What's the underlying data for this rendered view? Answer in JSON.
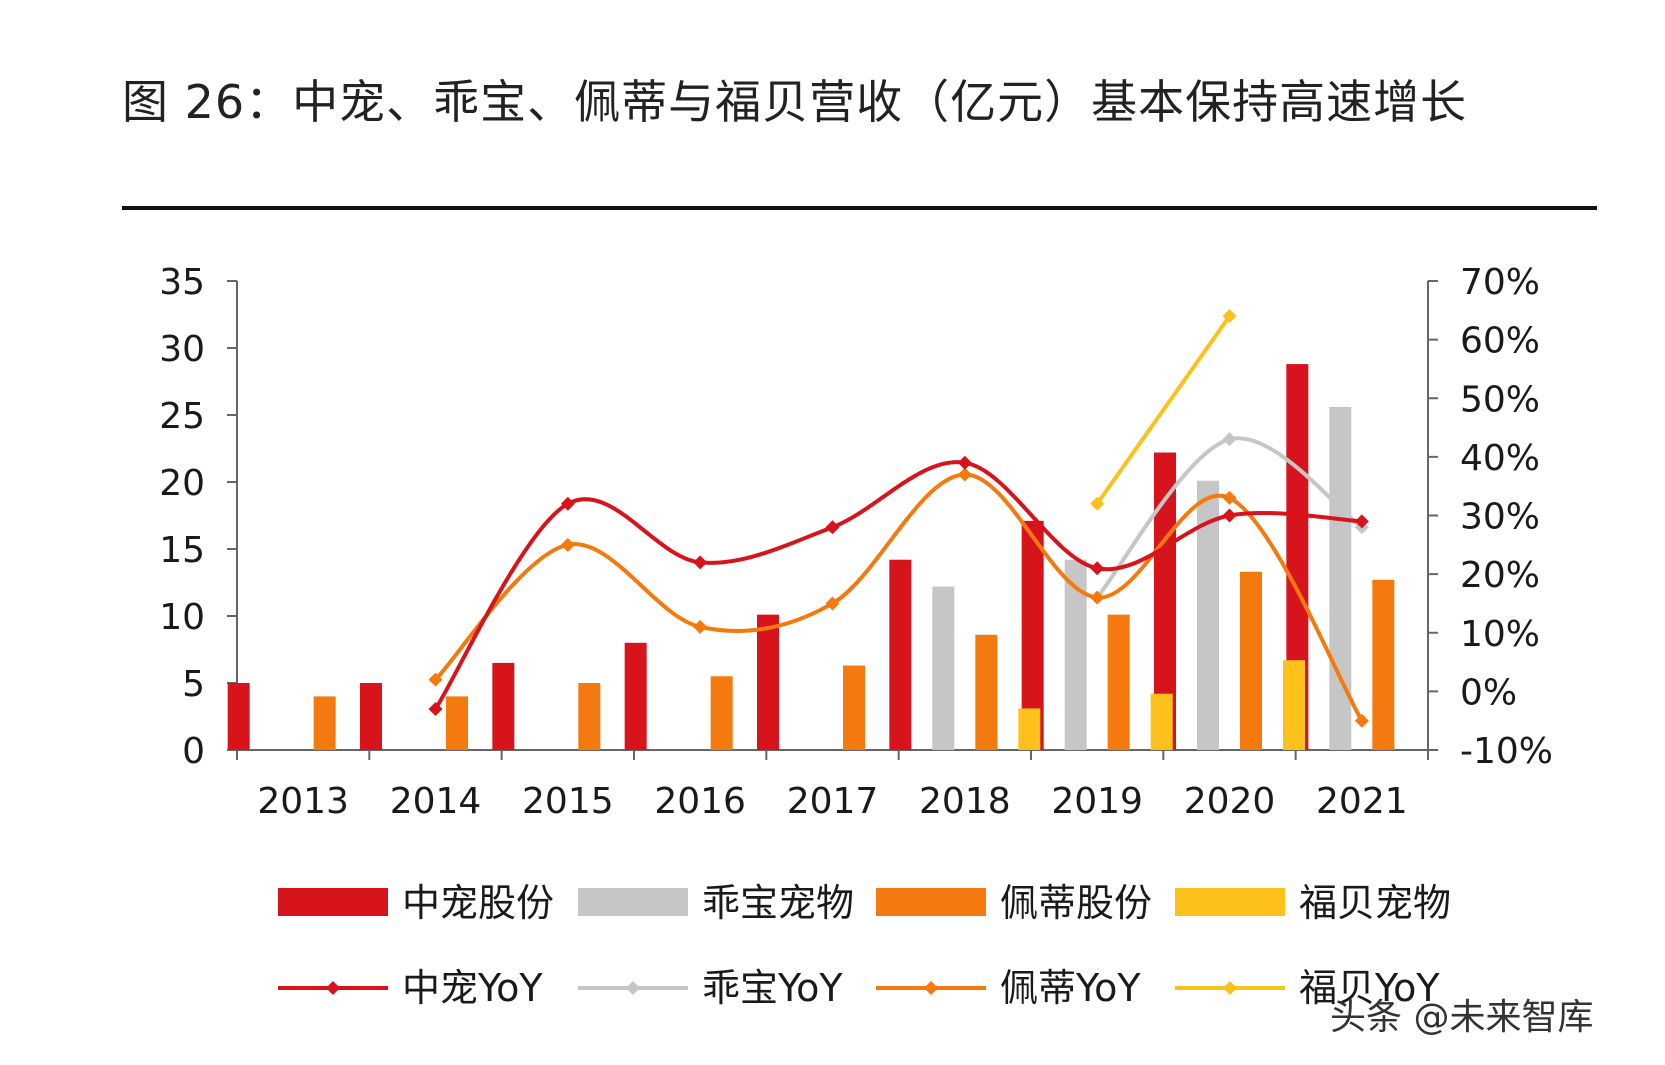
{
  "figure_title": "图 26：中宠、乖宝、佩蒂与福贝营收（亿元）基本保持高速增长",
  "watermark": "头条 @未来智库",
  "colors": {
    "zhongchong": "#d7141b",
    "guaibao": "#c6c6c6",
    "peidi": "#f4790f",
    "fubei": "#fcc21b"
  },
  "chart_data": {
    "type": "bar",
    "categories": [
      "2013",
      "2014",
      "2015",
      "2016",
      "2017",
      "2018",
      "2019",
      "2020",
      "2021"
    ],
    "ylim": [
      0,
      35
    ],
    "y_ticks": [
      "0",
      "5",
      "10",
      "15",
      "20",
      "25",
      "30",
      "35"
    ],
    "y2lim": [
      -0.1,
      0.7
    ],
    "y2_ticks": [
      "-10%",
      "0%",
      "10%",
      "20%",
      "30%",
      "40%",
      "50%",
      "60%",
      "70%"
    ],
    "grid": false,
    "legend_position": "bottom",
    "series": [
      {
        "name": "中宠股份",
        "kind": "bar",
        "color_key": "zhongchong",
        "values": [
          5.0,
          5.0,
          6.5,
          8.0,
          10.1,
          14.2,
          17.1,
          22.2,
          28.8
        ]
      },
      {
        "name": "乖宝宠物",
        "kind": "bar",
        "color_key": "guaibao",
        "values": [
          null,
          null,
          null,
          null,
          null,
          12.2,
          14.2,
          20.1,
          25.6
        ]
      },
      {
        "name": "佩蒂股份",
        "kind": "bar",
        "color_key": "peidi",
        "values": [
          4.0,
          4.0,
          5.0,
          5.5,
          6.3,
          8.6,
          10.1,
          13.3,
          12.7
        ]
      },
      {
        "name": "福贝宠物",
        "kind": "bar",
        "color_key": "fubei",
        "values": [
          null,
          null,
          null,
          null,
          null,
          3.1,
          4.2,
          6.7,
          null
        ]
      },
      {
        "name": "中宠YoY",
        "kind": "line",
        "axis": "right",
        "color_key": "zhongchong",
        "values": [
          null,
          -0.03,
          0.32,
          0.22,
          0.28,
          0.39,
          0.21,
          0.3,
          0.29
        ]
      },
      {
        "name": "乖宝YoY",
        "kind": "line",
        "axis": "right",
        "color_key": "guaibao",
        "values": [
          null,
          null,
          null,
          null,
          null,
          null,
          0.16,
          0.43,
          0.28
        ]
      },
      {
        "name": "佩蒂YoY",
        "kind": "line",
        "axis": "right",
        "color_key": "peidi",
        "values": [
          null,
          0.02,
          0.25,
          0.11,
          0.15,
          0.37,
          0.16,
          0.33,
          -0.05
        ]
      },
      {
        "name": "福贝YoY",
        "kind": "line",
        "axis": "right",
        "color_key": "fubei",
        "values": [
          null,
          null,
          null,
          null,
          null,
          null,
          0.32,
          0.64,
          null
        ]
      }
    ]
  }
}
